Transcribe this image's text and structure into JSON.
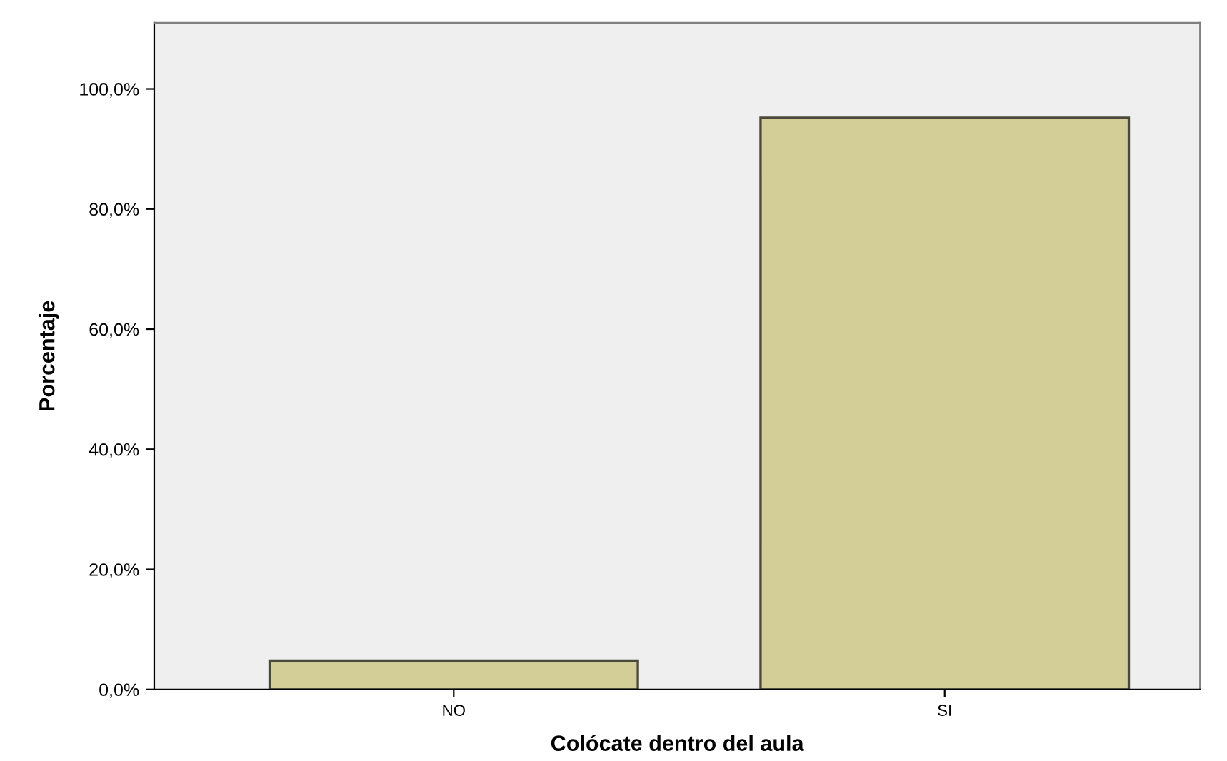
{
  "chart_data": {
    "type": "bar",
    "xlabel": "Colócate dentro del aula",
    "ylabel": "Porcentaje",
    "categories": [
      "NO",
      "SI"
    ],
    "values": [
      4.8,
      95.2
    ],
    "color": "#d3ce97",
    "ylim": [
      0,
      111
    ],
    "yticks": [
      {
        "value": 0,
        "label": "0,0%"
      },
      {
        "value": 20,
        "label": "20,0%"
      },
      {
        "value": 40,
        "label": "40,0%"
      },
      {
        "value": 60,
        "label": "60,0%"
      },
      {
        "value": 80,
        "label": "80,0%"
      },
      {
        "value": 100,
        "label": "100,0%"
      }
    ],
    "grid": false,
    "legend": false
  }
}
